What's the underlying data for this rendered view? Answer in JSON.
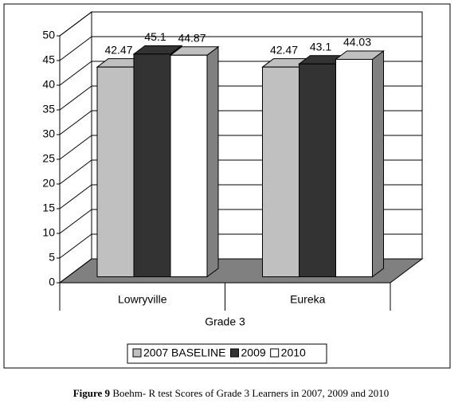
{
  "chart_data": {
    "type": "bar3d",
    "categories": [
      "Lowryville",
      "Eureka"
    ],
    "group_label": "Grade 3",
    "series": [
      {
        "name": "2007 BASELINE",
        "color": "#c0c0c0",
        "values": [
          42.47,
          42.47
        ]
      },
      {
        "name": "2009",
        "color": "#333333",
        "values": [
          45.1,
          43.1
        ]
      },
      {
        "name": "2010",
        "color": "#ffffff",
        "values": [
          44.87,
          44.03
        ]
      }
    ],
    "ylim": [
      0,
      50
    ],
    "yticks": [
      0,
      5,
      10,
      15,
      20,
      25,
      30,
      35,
      40,
      45,
      50
    ],
    "grid": true
  },
  "caption": {
    "label": "Figure 9",
    "text": "Boehm- R test Scores of Grade 3 Learners in 2007, 2009 and 2010"
  }
}
